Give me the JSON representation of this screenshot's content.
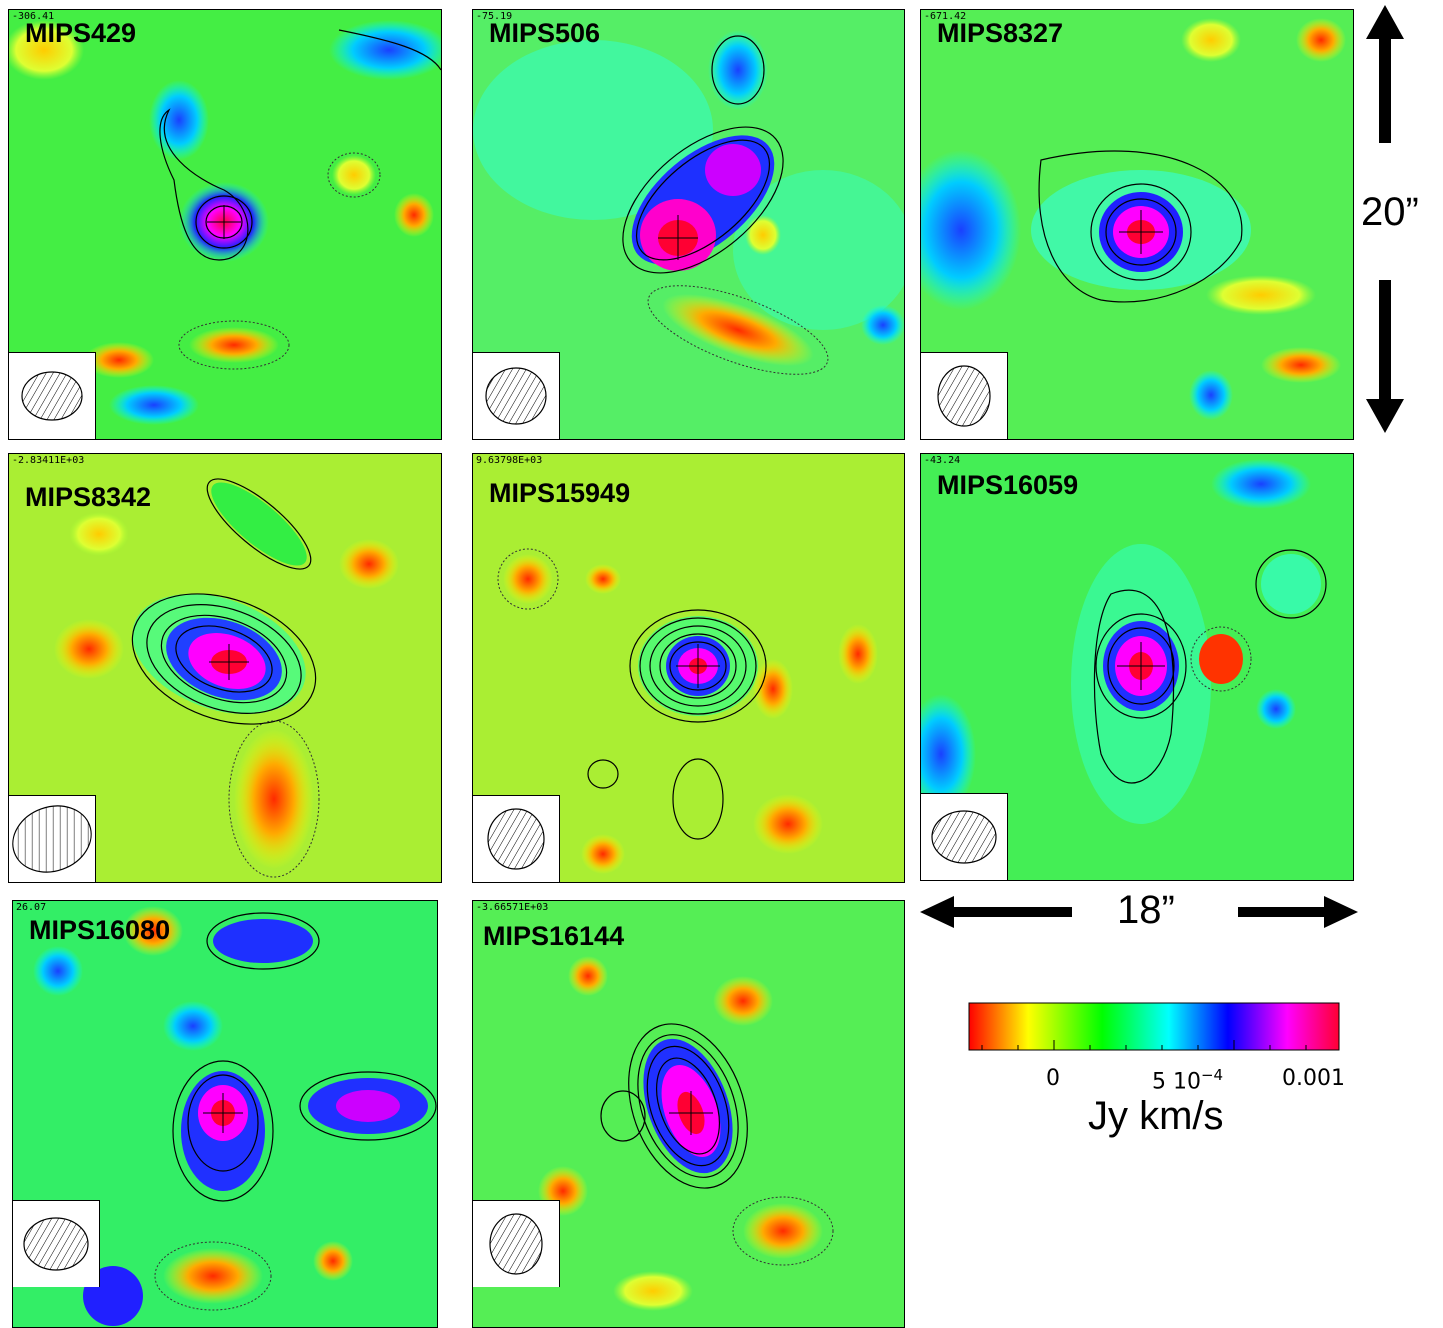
{
  "figure": {
    "panels": [
      {
        "name": "MIPS429",
        "value": "-306.41"
      },
      {
        "name": "MIPS506",
        "value": "-75.19"
      },
      {
        "name": "MIPS8327",
        "value": "-671.42"
      },
      {
        "name": "MIPS8342",
        "value": "-2.83411E+03"
      },
      {
        "name": "MIPS15949",
        "value": "9.63798E+03"
      },
      {
        "name": "MIPS16059",
        "value": "-43.24"
      },
      {
        "name": "MIPS16080",
        "value": "26.07"
      },
      {
        "name": "MIPS16144",
        "value": "-3.66571E+03"
      }
    ],
    "scale_vertical": "20”",
    "scale_horizontal": "18”",
    "colorbar": {
      "ticks": [
        "0",
        "5 10",
        "0.001"
      ],
      "tick_exponent": "−4",
      "unit": "Jy km/s",
      "colors": [
        "#ff0000",
        "#ffff00",
        "#00ff00",
        "#00ffff",
        "#0000ff",
        "#ff00ff",
        "#ff0033"
      ]
    }
  }
}
